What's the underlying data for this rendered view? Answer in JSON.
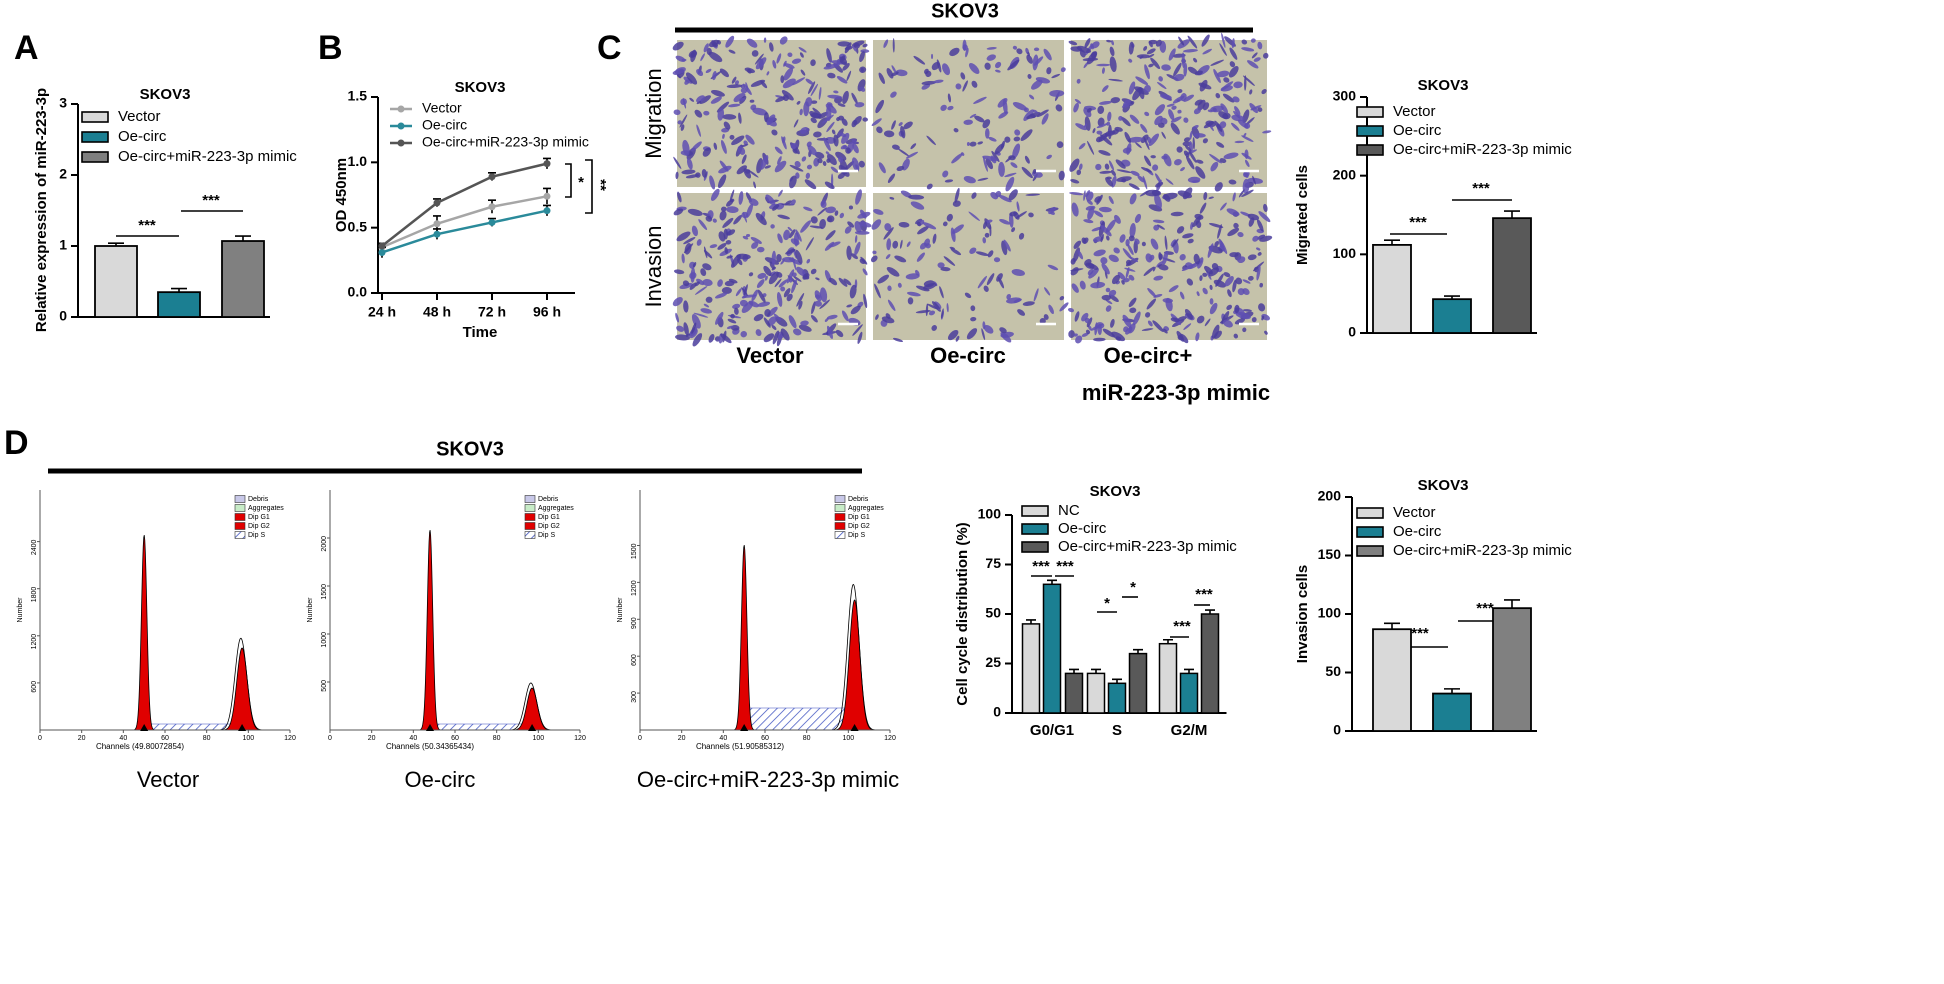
{
  "panel_labels": [
    "A",
    "B",
    "C",
    "D"
  ],
  "chart_data": [
    {
      "type": "bar",
      "title": "SKOV3",
      "y_label": "Relative expression of  miR-223-3p",
      "ylim": [
        0,
        3
      ],
      "yticks": [
        0,
        1,
        2,
        3
      ],
      "series": [
        {
          "name": "Vector",
          "color": "#d9d9d9",
          "values": [
            1.0
          ],
          "errors": [
            0.04
          ]
        },
        {
          "name": "Oe-circ",
          "color": "#1b7f92",
          "values": [
            0.35
          ],
          "errors": [
            0.05
          ]
        },
        {
          "name": "Oe-circ+miR-223-3p mimic",
          "color": "#808080",
          "values": [
            1.07
          ],
          "errors": [
            0.07
          ]
        }
      ],
      "annotations": [
        "***",
        "***"
      ]
    },
    {
      "type": "line",
      "title": "SKOV3",
      "x_label": "Time",
      "y_label": "OD 450nm",
      "categories": [
        "24 h",
        "48 h",
        "72 h",
        "96 h"
      ],
      "ylim": [
        0,
        1.5
      ],
      "yticks": [
        {
          "value": 0,
          "label": "0.0"
        },
        {
          "value": 0.5,
          "label": "0.5"
        },
        {
          "value": 1,
          "label": "1.0"
        },
        {
          "value": 1.5,
          "label": "1.5"
        }
      ],
      "series": [
        {
          "name": "Vector",
          "color": "#a6a6a6",
          "values": [
            0.35,
            0.53,
            0.66,
            0.74
          ],
          "errors": [
            0.03,
            0.06,
            0.05,
            0.06
          ]
        },
        {
          "name": "Oe-circ",
          "color": "#2a8a9a",
          "values": [
            0.31,
            0.45,
            0.54,
            0.63
          ],
          "errors": [
            0.04,
            0.04,
            0.03,
            0.04
          ]
        },
        {
          "name": "Oe-circ+miR-223-3p mimic",
          "color": "#555555",
          "values": [
            0.36,
            0.69,
            0.89,
            0.99
          ],
          "errors": [
            0.02,
            0.03,
            0.03,
            0.04
          ]
        }
      ],
      "annotations": [
        "*",
        "**"
      ]
    },
    {
      "type": "bar",
      "title": "SKOV3",
      "y_label": "Migrated cells",
      "ylim": [
        0,
        300
      ],
      "yticks": [
        0,
        100,
        200,
        300
      ],
      "series": [
        {
          "name": "Vector",
          "color": "#d9d9d9",
          "values": [
            112
          ],
          "errors": [
            6
          ]
        },
        {
          "name": "Oe-circ",
          "color": "#1b7f92",
          "values": [
            43
          ],
          "errors": [
            4
          ]
        },
        {
          "name": "Oe-circ+miR-223-3p mimic",
          "color": "#595959",
          "values": [
            146
          ],
          "errors": [
            9
          ]
        }
      ],
      "annotations": [
        "***",
        "***"
      ]
    },
    {
      "type": "grouped_bar",
      "title": "SKOV3",
      "y_label": "Cell cycle distribution (%)",
      "categories": [
        "G0/G1",
        "S",
        "G2/M"
      ],
      "ylim": [
        0,
        100
      ],
      "yticks": [
        0,
        25,
        50,
        75,
        100
      ],
      "series": [
        {
          "name": "NC",
          "color": "#d9d9d9",
          "values": [
            45,
            20,
            35
          ],
          "errors": [
            2,
            2,
            2
          ]
        },
        {
          "name": "Oe-circ",
          "color": "#1b7f92",
          "values": [
            65,
            15,
            20
          ],
          "errors": [
            2,
            2,
            2
          ]
        },
        {
          "name": "Oe-circ+miR-223-3p mimic",
          "color": "#595959",
          "values": [
            20,
            30,
            50
          ],
          "errors": [
            2,
            2,
            2
          ]
        }
      ],
      "annotations": [
        "***",
        "***",
        "*",
        "*",
        "***",
        "***"
      ]
    },
    {
      "type": "bar",
      "title": "SKOV3",
      "y_label": "Invasion cells",
      "ylim": [
        0,
        200
      ],
      "yticks": [
        0,
        50,
        100,
        150,
        200
      ],
      "series": [
        {
          "name": "Vector",
          "color": "#d9d9d9",
          "values": [
            87
          ],
          "errors": [
            5
          ]
        },
        {
          "name": "Oe-circ",
          "color": "#1b7f92",
          "values": [
            32
          ],
          "errors": [
            4
          ]
        },
        {
          "name": "Oe-circ+miR-223-3p mimic",
          "color": "#808080",
          "values": [
            105
          ],
          "errors": [
            7
          ]
        }
      ],
      "annotations": [
        "***",
        "***"
      ]
    }
  ],
  "transwell": {
    "title": "SKOV3",
    "rows": [
      "Migration",
      "Invasion"
    ],
    "columns": [
      [
        "Vector"
      ],
      [
        "Oe-circ"
      ],
      [
        "Oe-circ+",
        "miR-223-3p mimic"
      ]
    ]
  },
  "flow_cytometry": {
    "title": "SKOV3",
    "legend": [
      "Debris",
      "Aggregates",
      "Dip G1",
      "Dip G2",
      "Dip S"
    ],
    "y_label": "Number",
    "x_ticks": [
      0,
      20,
      40,
      60,
      80,
      100,
      120
    ],
    "plots": [
      {
        "label": "Vector",
        "channels": "Channels (49.80072854)",
        "y_ticks": [
          600,
          1200,
          1800,
          2400
        ]
      },
      {
        "label": "Oe-circ",
        "channels": "Channels (50.34365434)",
        "y_ticks": [
          500,
          1000,
          1500,
          2000
        ]
      },
      {
        "label": "Oe-circ+miR-223-3p mimic",
        "channels": "Channels (51.90585312)",
        "y_ticks": [
          300,
          600,
          900,
          1200,
          1500
        ]
      }
    ]
  }
}
